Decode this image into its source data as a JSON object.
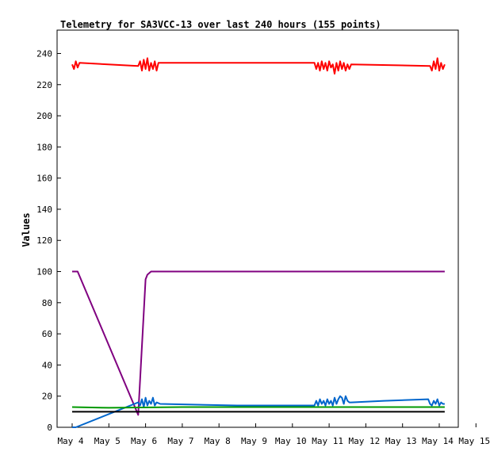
{
  "chart_data": {
    "type": "line",
    "title": "Telemetry for SA3VCC-13 over last 240 hours (155 points)",
    "ylabel": "Values",
    "xlabel": "",
    "xlim": [
      4,
      15
    ],
    "ylim": [
      0,
      255
    ],
    "grid": false,
    "x_ticks": [
      {
        "value": 4,
        "label": "May 4"
      },
      {
        "value": 5,
        "label": "May 5"
      },
      {
        "value": 6,
        "label": "May 6"
      },
      {
        "value": 7,
        "label": "May 7"
      },
      {
        "value": 8,
        "label": "May 8"
      },
      {
        "value": 9,
        "label": "May 9"
      },
      {
        "value": 10,
        "label": "May 10"
      },
      {
        "value": 11,
        "label": "May 11"
      },
      {
        "value": 12,
        "label": "May 12"
      },
      {
        "value": 13,
        "label": "May 13"
      },
      {
        "value": 14,
        "label": "May 14"
      },
      {
        "value": 15,
        "label": "May 15"
      }
    ],
    "y_ticks": [
      0,
      20,
      40,
      60,
      80,
      100,
      120,
      140,
      160,
      180,
      200,
      220,
      240
    ],
    "series": [
      {
        "color": "#ff0000",
        "x": [
          4.0,
          4.05,
          4.1,
          4.15,
          4.2,
          5.8,
          5.85,
          5.9,
          5.95,
          6.0,
          6.05,
          6.1,
          6.15,
          6.2,
          6.25,
          6.3,
          6.35,
          10.6,
          10.65,
          10.7,
          10.75,
          10.8,
          10.85,
          10.9,
          10.95,
          11.0,
          11.05,
          11.1,
          11.15,
          11.2,
          11.25,
          11.3,
          11.35,
          11.4,
          11.45,
          11.5,
          11.55,
          11.6,
          13.75,
          13.8,
          13.85,
          13.9,
          13.95,
          14.0,
          14.05,
          14.1,
          14.15
        ],
        "y": [
          233,
          230,
          235,
          231,
          234,
          232,
          235,
          229,
          236,
          230,
          237,
          229,
          234,
          230,
          235,
          229,
          234,
          234,
          230,
          234,
          229,
          235,
          230,
          234,
          229,
          235,
          231,
          233,
          227,
          234,
          229,
          235,
          230,
          234,
          229,
          233,
          230,
          233,
          232,
          229,
          235,
          230,
          237,
          229,
          234,
          230,
          233
        ]
      },
      {
        "color": "#800080",
        "x": [
          4.0,
          4.15,
          5.8,
          6.0,
          6.05,
          6.15,
          14.15
        ],
        "y": [
          100,
          100,
          8,
          95,
          98,
          100,
          100
        ]
      },
      {
        "color": "#0066cc",
        "x": [
          4.0,
          4.1,
          5.8,
          5.85,
          5.9,
          5.95,
          6.0,
          6.05,
          6.1,
          6.15,
          6.2,
          6.25,
          6.3,
          6.4,
          8.5,
          10.6,
          10.65,
          10.7,
          10.75,
          10.8,
          10.85,
          10.9,
          10.95,
          11.0,
          11.05,
          11.1,
          11.15,
          11.2,
          11.25,
          11.3,
          11.35,
          11.4,
          11.45,
          11.5,
          11.55,
          11.6,
          12.5,
          13.7,
          13.75,
          13.8,
          13.85,
          13.9,
          13.95,
          14.0,
          14.05,
          14.1,
          14.15
        ],
        "y": [
          0,
          0,
          16,
          14,
          18,
          13,
          19,
          14,
          17,
          15,
          19,
          14,
          16,
          15,
          14,
          14,
          17,
          14,
          18,
          15,
          17,
          14,
          18,
          15,
          17,
          14,
          19,
          15,
          18,
          20,
          19,
          15,
          20,
          17,
          16,
          16,
          17,
          18,
          15,
          14,
          17,
          15,
          18,
          14,
          16,
          15,
          15
        ]
      },
      {
        "color": "#009900",
        "x": [
          4.0,
          5.0,
          7.0,
          9.0,
          11.0,
          14.15
        ],
        "y": [
          13,
          12.5,
          13,
          13,
          13,
          13
        ]
      },
      {
        "color": "#000000",
        "x": [
          4.0,
          14.15
        ],
        "y": [
          10,
          10
        ]
      }
    ]
  }
}
